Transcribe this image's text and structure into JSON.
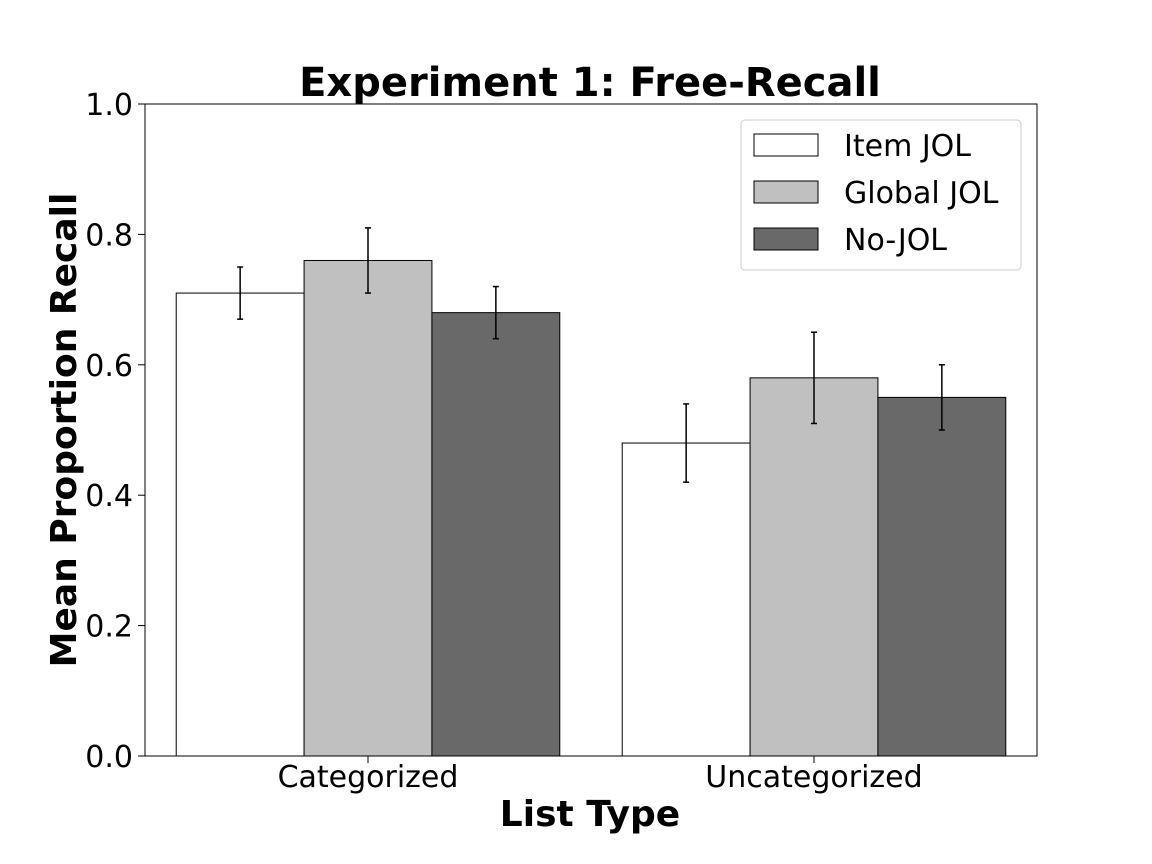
{
  "chart_data": {
    "type": "bar",
    "title": "Experiment 1: Free-Recall",
    "xlabel": "List Type",
    "ylabel": "Mean Proportion Recall",
    "ylim": [
      0,
      1.0
    ],
    "yticks": [
      "0.0",
      "0.2",
      "0.4",
      "0.6",
      "0.8",
      "1.0"
    ],
    "categories": [
      "Categorized",
      "Uncategorized"
    ],
    "series": [
      {
        "name": "Item JOL",
        "values": [
          0.71,
          0.48
        ],
        "err_low": [
          0.67,
          0.42
        ],
        "err_high": [
          0.75,
          0.54
        ],
        "color": "#ffffff"
      },
      {
        "name": "Global JOL",
        "values": [
          0.76,
          0.58
        ],
        "err_low": [
          0.71,
          0.51
        ],
        "err_high": [
          0.81,
          0.65
        ],
        "color": "#c0c0c0"
      },
      {
        "name": "No-JOL",
        "values": [
          0.68,
          0.55
        ],
        "err_low": [
          0.64,
          0.5
        ],
        "err_high": [
          0.72,
          0.6
        ],
        "color": "#696969"
      }
    ],
    "legend_position": "top-right",
    "grid": false
  }
}
